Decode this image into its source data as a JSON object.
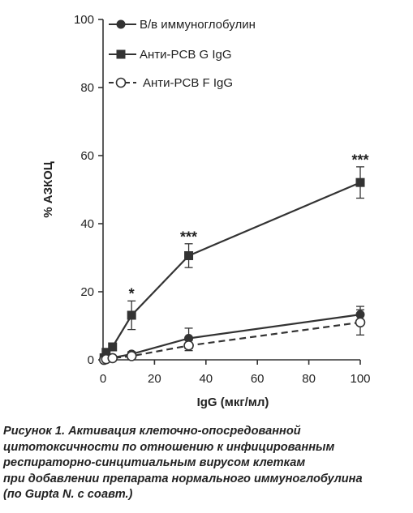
{
  "chart_data": {
    "type": "line",
    "ylabel": "% АЗКОЦ",
    "xlabel": "IgG (мкг/мл)",
    "xlim": [
      0,
      100
    ],
    "ylim": [
      0,
      100
    ],
    "x_ticks": [
      0,
      20,
      40,
      60,
      80,
      100
    ],
    "y_ticks": [
      0,
      20,
      40,
      60,
      80,
      100
    ],
    "grid": false,
    "legend_position": "top-left",
    "series": [
      {
        "name": "В/в иммуноглобулин",
        "marker": "filled-circle",
        "line": "solid",
        "color": "#333333",
        "points": [
          {
            "x": 0.4,
            "y": 0,
            "err": 0.5
          },
          {
            "x": 1.2,
            "y": 0.4,
            "err": 0.5
          },
          {
            "x": 3.7,
            "y": 0.6,
            "err": 0.5
          },
          {
            "x": 11.1,
            "y": 1.7,
            "err": 0.7
          },
          {
            "x": 33.3,
            "y": 6.3,
            "err": 3
          },
          {
            "x": 100,
            "y": 13.3,
            "err": 2.4
          }
        ]
      },
      {
        "name": "Анти-PCB G IgG",
        "marker": "filled-square",
        "line": "solid",
        "color": "#333333",
        "points": [
          {
            "x": 0.4,
            "y": 0.6,
            "err": 0.5
          },
          {
            "x": 1.2,
            "y": 2.2,
            "err": 0.8
          },
          {
            "x": 3.7,
            "y": 3.8,
            "err": 0.8
          },
          {
            "x": 11.1,
            "y": 13.1,
            "err": 4.2
          },
          {
            "x": 33.3,
            "y": 30.6,
            "err": 3.5
          },
          {
            "x": 100,
            "y": 52.1,
            "err": 4.6
          }
        ]
      },
      {
        "name": "Анти-PCB F IgG",
        "marker": "open-circle",
        "line": "dashed",
        "color": "#333333",
        "points": [
          {
            "x": 0.4,
            "y": 0,
            "err": 0.4
          },
          {
            "x": 1.2,
            "y": 0.2,
            "err": 0.4
          },
          {
            "x": 3.7,
            "y": 0.5,
            "err": 0.4
          },
          {
            "x": 11.1,
            "y": 1.1,
            "err": 0.6
          },
          {
            "x": 33.3,
            "y": 4.2,
            "err": 1.5
          },
          {
            "x": 100,
            "y": 11,
            "err": 3.7
          }
        ]
      }
    ],
    "annotations": [
      {
        "text": "*",
        "x": 11.1,
        "y": 17.5
      },
      {
        "text": "***",
        "x": 33.3,
        "y": 34.2
      },
      {
        "text": "***",
        "x": 100,
        "y": 56.8
      }
    ]
  },
  "caption": {
    "lines": [
      "Рисунок 1. Активация клеточно-опосредованной",
      "цитотоксичности по отношению к инфицированным",
      "респираторно-синцитиальным вирусом клеткам",
      "при добавлении препарата нормального иммуноглобулина",
      "(по Gupta N. с соавт.)"
    ]
  }
}
